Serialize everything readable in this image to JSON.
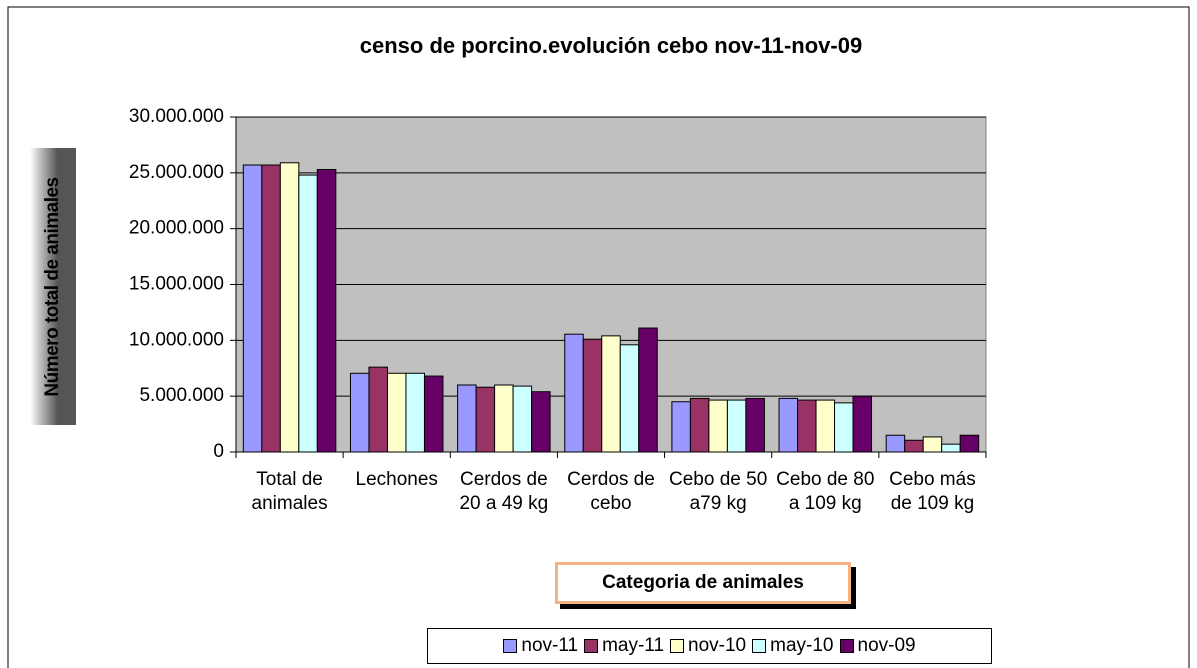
{
  "chart_data": {
    "type": "bar",
    "title": "censo de porcino.evolución cebo nov-11-nov-09",
    "x_label": "Categoria de animales",
    "y_label": "Número total de animales",
    "categories": [
      "Total de animales",
      "Lechones",
      "Cerdos de 20 a 49 kg",
      "Cerdos de cebo",
      "Cebo de 50 a79 kg",
      "Cebo de 80 a 109 kg",
      "Cebo más de 109 kg"
    ],
    "series": [
      {
        "name": "nov-11",
        "color": "#9999ff",
        "values": [
          25700000,
          7050000,
          6000000,
          10550000,
          4500000,
          4800000,
          1500000
        ]
      },
      {
        "name": "may-11",
        "color": "#993366",
        "values": [
          25700000,
          7600000,
          5800000,
          10100000,
          4800000,
          4650000,
          1050000
        ]
      },
      {
        "name": "nov-10",
        "color": "#ffffcc",
        "values": [
          25900000,
          7050000,
          6000000,
          10400000,
          4650000,
          4650000,
          1350000
        ]
      },
      {
        "name": "may-10",
        "color": "#ccffff",
        "values": [
          24800000,
          7050000,
          5900000,
          9600000,
          4650000,
          4400000,
          700000
        ]
      },
      {
        "name": "nov-09",
        "color": "#660066",
        "values": [
          25300000,
          6800000,
          5400000,
          11100000,
          4800000,
          5000000,
          1500000
        ]
      }
    ],
    "ylim": [
      0,
      30000000
    ],
    "yticks": [
      0,
      {
        "value": 5000000,
        "label": "5.000.000"
      },
      {
        "value": 10000000,
        "label": "10.000.000"
      },
      {
        "value": 15000000,
        "label": "15.000.000"
      },
      {
        "value": 20000000,
        "label": "20.000.000"
      },
      {
        "value": 25000000,
        "label": "25.000.000"
      },
      {
        "value": 30000000,
        "label": "30.000.000"
      }
    ],
    "grid": true,
    "legend": "bottom"
  }
}
